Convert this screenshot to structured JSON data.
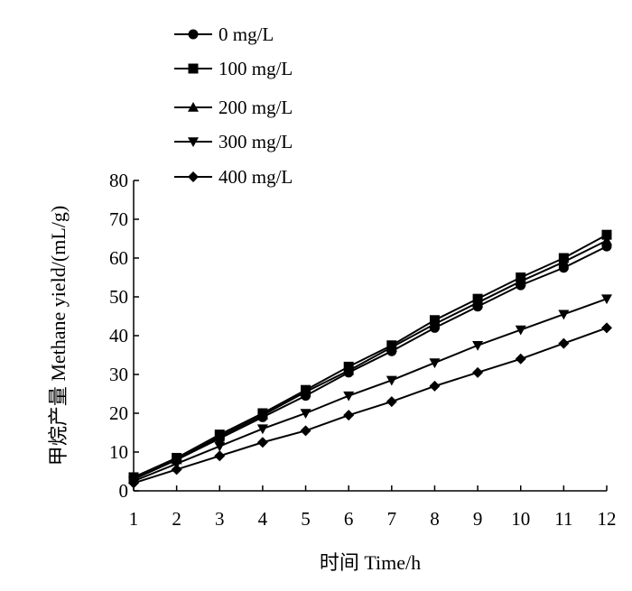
{
  "chart_data": {
    "type": "line",
    "xlabel": "时间  Time/h",
    "ylabel": "甲烷产量  Methane yield/(mL/g)",
    "xlim": [
      1,
      12
    ],
    "ylim": [
      0,
      80
    ],
    "x_ticks": [
      "1",
      "2",
      "3",
      "4",
      "5",
      "6",
      "7",
      "8",
      "9",
      "10",
      "11",
      "12"
    ],
    "y_ticks": [
      "0",
      "10",
      "20",
      "30",
      "40",
      "50",
      "60",
      "70",
      "80"
    ],
    "grid": false,
    "legend_position": "top-left",
    "x": [
      1,
      2,
      3,
      4,
      5,
      6,
      7,
      8,
      9,
      10,
      11,
      12
    ],
    "series": [
      {
        "name": "0 mg/L",
        "marker": "circle",
        "values": [
          3,
          8,
          13.5,
          19,
          24.5,
          30.5,
          36,
          42,
          47.5,
          53,
          57.5,
          63
        ]
      },
      {
        "name": "100 mg/L",
        "marker": "square",
        "values": [
          3.5,
          8.5,
          14.5,
          20,
          26,
          32,
          37.5,
          44,
          49.5,
          55,
          60,
          66
        ]
      },
      {
        "name": "200 mg/L",
        "marker": "triangle-up",
        "values": [
          3,
          8,
          14,
          19.5,
          25.5,
          31,
          37,
          43,
          48.5,
          54,
          59,
          64.5
        ]
      },
      {
        "name": "300 mg/L",
        "marker": "triangle-down",
        "values": [
          2.5,
          7,
          11.5,
          16,
          20,
          24.5,
          28.5,
          33,
          37.5,
          41.5,
          45.5,
          49.5
        ]
      },
      {
        "name": "400 mg/L",
        "marker": "diamond",
        "values": [
          2,
          5.5,
          9,
          12.5,
          15.5,
          19.5,
          23,
          27,
          30.5,
          34,
          38,
          42
        ]
      }
    ]
  }
}
